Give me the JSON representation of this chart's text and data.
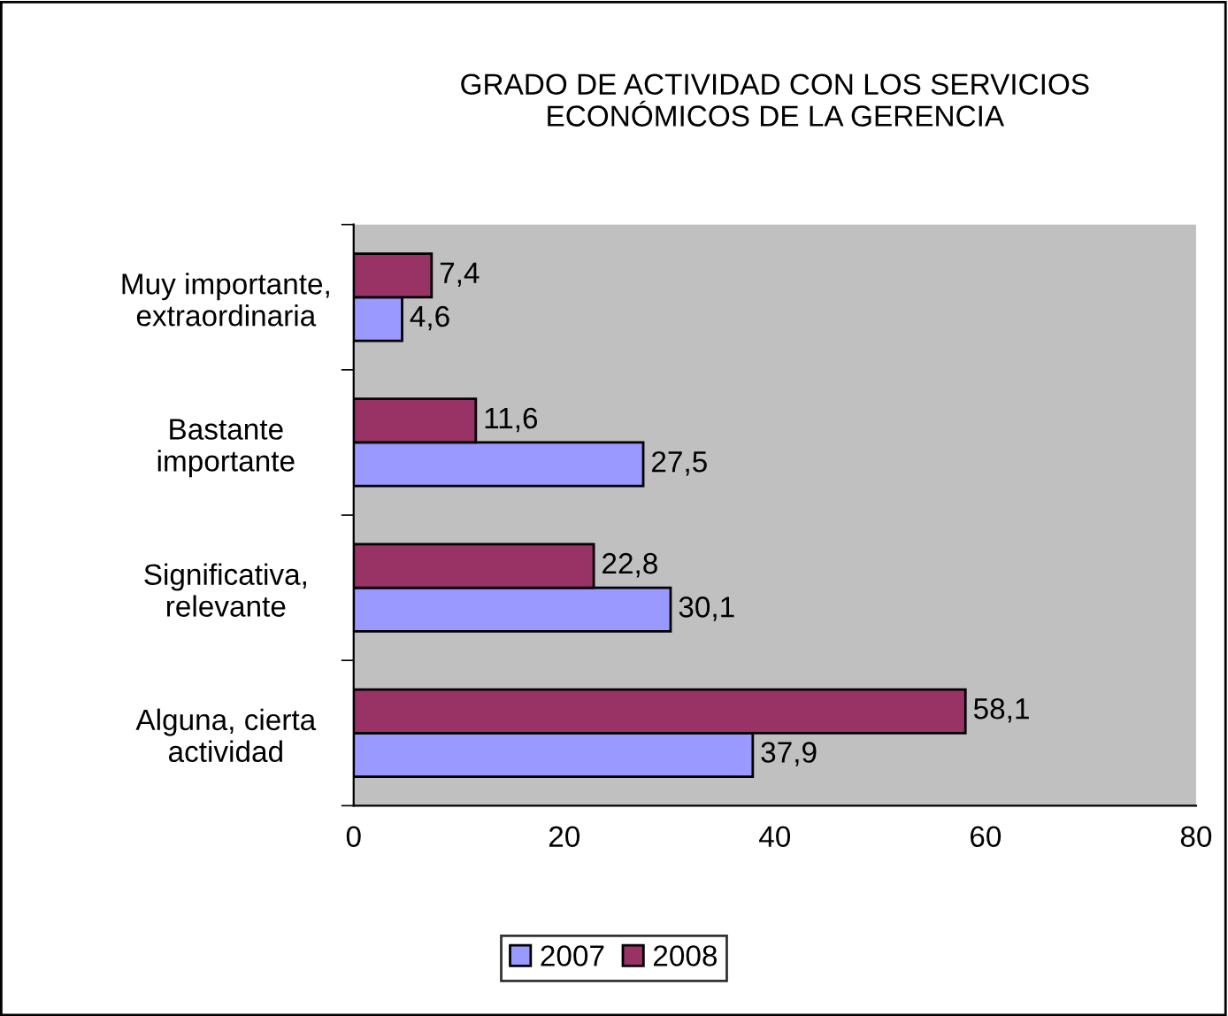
{
  "chart_data": {
    "type": "bar",
    "orientation": "horizontal",
    "title": "GRADO DE ACTIVIDAD CON LOS SERVICIOS\nECONÓMICOS DE LA GERENCIA",
    "categories": [
      "Muy importante,\nextraordinaria",
      "Bastante\nimportante",
      "Significativa,\nrelevante",
      "Alguna, cierta\nactividad"
    ],
    "series": [
      {
        "name": "2007",
        "color": "#9999ff",
        "values": [
          4.6,
          27.5,
          30.1,
          37.9
        ],
        "value_labels": [
          "4,6",
          "27,5",
          "30,1",
          "37,9"
        ]
      },
      {
        "name": "2008",
        "color": "#993366",
        "values": [
          7.4,
          11.6,
          22.8,
          58.1
        ],
        "value_labels": [
          "7,4",
          "11,6",
          "22,8",
          "58,1"
        ]
      }
    ],
    "xlim": [
      0,
      80
    ],
    "xticks": [
      0,
      20,
      40,
      60,
      80
    ],
    "grid": false,
    "legend": "bottom"
  }
}
